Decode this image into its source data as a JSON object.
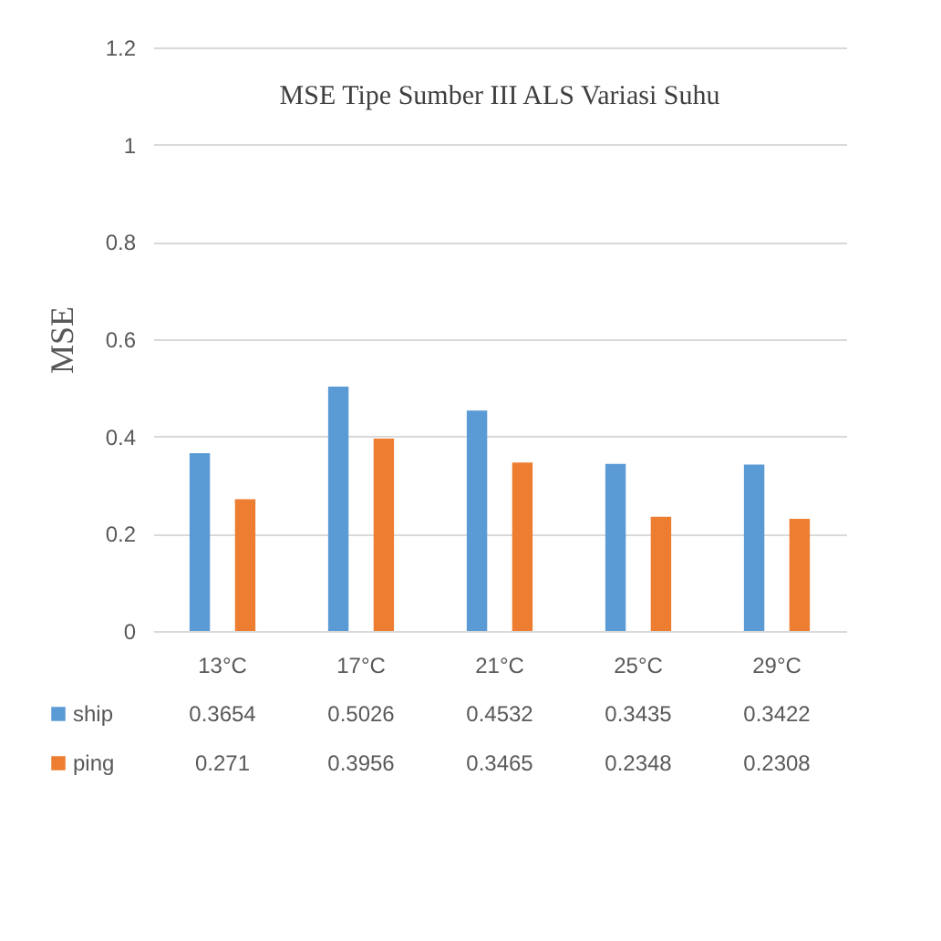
{
  "chart_data": {
    "type": "bar",
    "title": "MSE Tipe Sumber III ALS Variasi Suhu",
    "ylabel": "MSE",
    "categories": [
      "13°C",
      "17°C",
      "21°C",
      "25°C",
      "29°C"
    ],
    "series": [
      {
        "name": "ship",
        "color": "#5b9bd5",
        "values": [
          0.3654,
          0.5026,
          0.4532,
          0.3435,
          0.3422
        ]
      },
      {
        "name": "ping",
        "color": "#ed7d31",
        "values": [
          0.271,
          0.3956,
          0.3465,
          0.2348,
          0.2308
        ]
      }
    ],
    "ylim": [
      0,
      1.2
    ],
    "yticks": [
      0,
      0.2,
      0.4,
      0.6,
      0.8,
      1,
      1.2
    ],
    "grid": "y",
    "legend": "bottom",
    "data_labels": true
  }
}
